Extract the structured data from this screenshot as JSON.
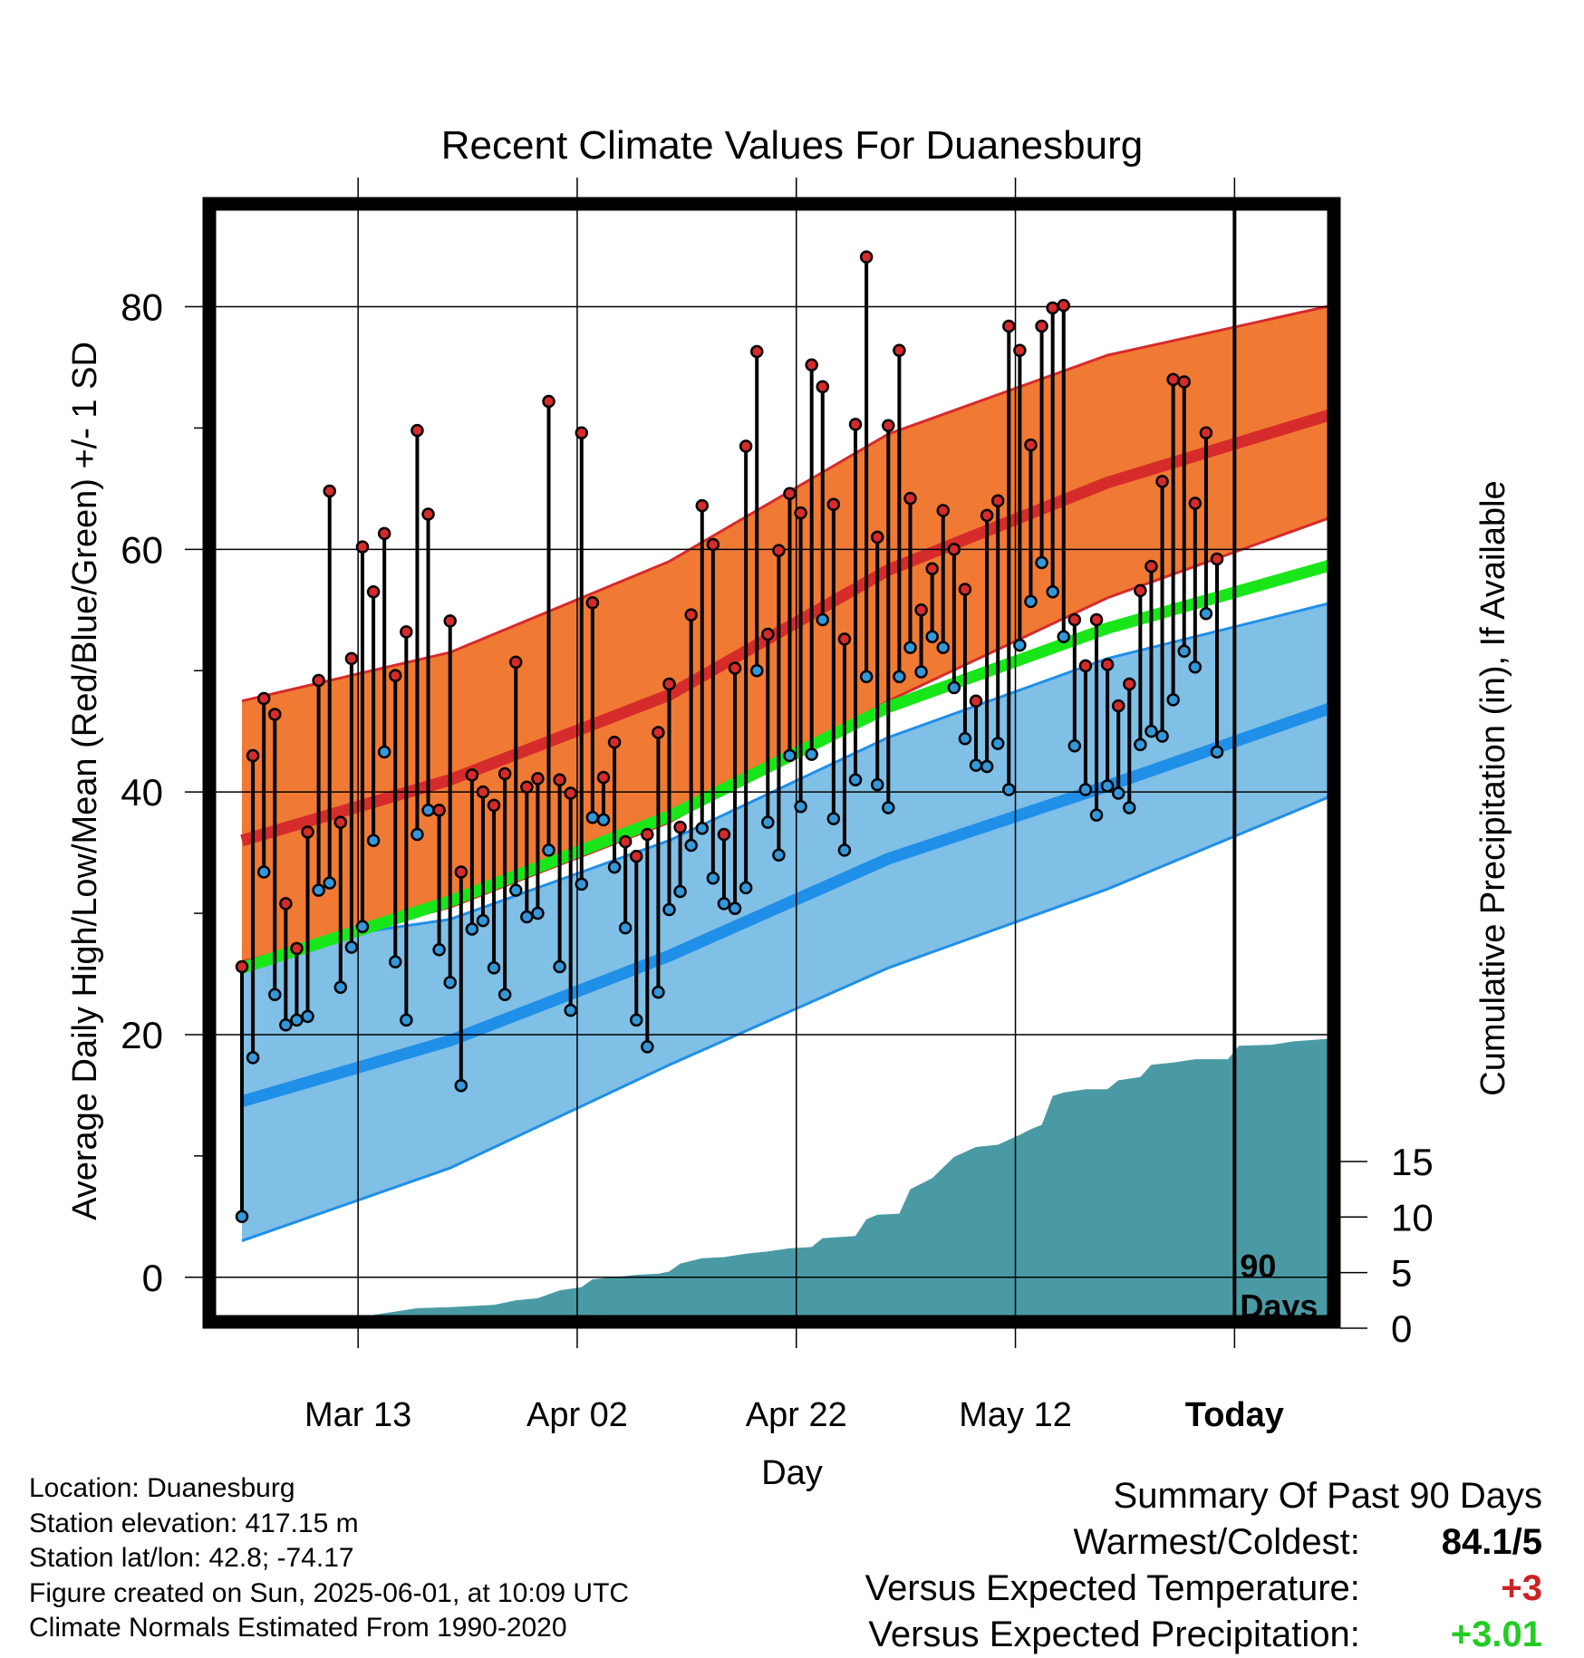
{
  "chart_data": {
    "type": "line",
    "title": "Recent Climate Values For Duanesburg",
    "xlabel": "Day",
    "ylabel": "Average Daily High/Low/Mean (Red/Blue/Green) +/- 1 SD",
    "y2label": "Cumulative Precipitation (in), If Available",
    "x_tick_labels": [
      "Mar 13",
      "Apr 02",
      "Apr 22",
      "May 12",
      "Today"
    ],
    "y_ticks": [
      "0",
      "20",
      "40",
      "60",
      "80"
    ],
    "y2_ticks": [
      "0",
      "5",
      "10",
      "15"
    ],
    "ylim": [
      -4.2,
      89
    ],
    "y2lim": [
      0,
      30
    ],
    "days_shown": 90,
    "today_marker_label": [
      "90",
      "Days"
    ],
    "colors": {
      "high_band": "#f07a33",
      "high_mean": "#d62b2b",
      "low_band": "#80bfe6",
      "low_mean": "#1f8fe8",
      "mean": "#19e619",
      "precip": "#4a9aa5",
      "high_dot": "#d62b2b",
      "low_dot": "#3398d9"
    },
    "daily_high": [
      25.6,
      43,
      47.7,
      46.4,
      30.8,
      27.1,
      36.7,
      49.2,
      64.8,
      37.5,
      51,
      60.2,
      56.5,
      61.3,
      49.6,
      53.2,
      69.8,
      62.9,
      38.5,
      54.1,
      33.4,
      41.4,
      40,
      38.9,
      41.5,
      50.7,
      40.4,
      41.1,
      72.2,
      41,
      39.9,
      69.6,
      55.6,
      41.2,
      44.1,
      35.9,
      34.7,
      36.5,
      44.9,
      48.9,
      37.1,
      54.6,
      63.6,
      60.4,
      36.5,
      50.2,
      68.5,
      76.3,
      53,
      59.9,
      64.6,
      63,
      75.2,
      73.4,
      63.7,
      52.6,
      70.3,
      84.1,
      61,
      70.2,
      76.4,
      64.2,
      55,
      58.4,
      63.2,
      60,
      56.7,
      47.5,
      62.8,
      64,
      78.4,
      76.4,
      68.6,
      78.4,
      79.9,
      80.1,
      54.2,
      50.4,
      54.2,
      50.5,
      47.1,
      48.9,
      56.6,
      58.6,
      65.6,
      74,
      73.8,
      63.8,
      69.6,
      59.2
    ],
    "daily_low": [
      5,
      18.1,
      33.4,
      23.3,
      20.8,
      21.2,
      21.5,
      31.9,
      32.5,
      23.9,
      27.2,
      28.9,
      36,
      43.3,
      26,
      21.2,
      36.5,
      38.5,
      27,
      24.3,
      15.8,
      28.7,
      29.4,
      25.5,
      23.3,
      31.9,
      29.7,
      30,
      35.2,
      25.6,
      22,
      32.4,
      37.9,
      37.7,
      33.8,
      28.8,
      21.2,
      19,
      23.5,
      30.3,
      31.8,
      35.6,
      37,
      32.9,
      30.8,
      30.4,
      32.1,
      50,
      37.5,
      34.8,
      43,
      38.8,
      43.1,
      54.2,
      37.8,
      35.2,
      41,
      49.5,
      40.6,
      38.7,
      49.5,
      51.9,
      49.9,
      52.8,
      51.9,
      48.6,
      44.4,
      42.2,
      42.1,
      44,
      40.2,
      52.1,
      55.7,
      58.9,
      56.5,
      52.8,
      43.8,
      40.2,
      38.1,
      40.5,
      39.9,
      38.7,
      43.9,
      45,
      44.6,
      47.6,
      51.6,
      50.3,
      54.7,
      43.3
    ],
    "normal_high_mean": [
      [
        1,
        36
      ],
      [
        20,
        41
      ],
      [
        40,
        48
      ],
      [
        60,
        58.3
      ],
      [
        80,
        65.5
      ],
      [
        100,
        71
      ],
      [
        111,
        73.5
      ]
    ],
    "normal_high_upper": [
      [
        1,
        47.5
      ],
      [
        20,
        51.5
      ],
      [
        40,
        59
      ],
      [
        60,
        69.5
      ],
      [
        80,
        76
      ],
      [
        100,
        80
      ],
      [
        111,
        81.7
      ]
    ],
    "normal_high_lower": [
      [
        1,
        26
      ],
      [
        20,
        30.5
      ],
      [
        40,
        37.5
      ],
      [
        60,
        47.5
      ],
      [
        80,
        56
      ],
      [
        100,
        62.5
      ],
      [
        111,
        66
      ]
    ],
    "normal_low_mean": [
      [
        1,
        14.5
      ],
      [
        20,
        19.5
      ],
      [
        40,
        26.5
      ],
      [
        60,
        34.5
      ],
      [
        80,
        40.5
      ],
      [
        100,
        46.8
      ],
      [
        111,
        50.5
      ]
    ],
    "normal_low_upper": [
      [
        1,
        27
      ],
      [
        20,
        29.5
      ],
      [
        40,
        36
      ],
      [
        60,
        44.5
      ],
      [
        80,
        51
      ],
      [
        100,
        55.5
      ],
      [
        111,
        57.5
      ]
    ],
    "normal_low_lower": [
      [
        1,
        3
      ],
      [
        20,
        9
      ],
      [
        40,
        17.5
      ],
      [
        60,
        25.5
      ],
      [
        80,
        32
      ],
      [
        100,
        39.5
      ],
      [
        111,
        44.3
      ]
    ],
    "normal_mean": [
      [
        1,
        25.5
      ],
      [
        20,
        31
      ],
      [
        40,
        38
      ],
      [
        60,
        47
      ],
      [
        80,
        53.5
      ],
      [
        100,
        58.6
      ],
      [
        111,
        62.3
      ]
    ],
    "cumulative_precip": [
      [
        12,
        0
      ],
      [
        13,
        1.2
      ],
      [
        15,
        1.5
      ],
      [
        17,
        1.8
      ],
      [
        20,
        1.9
      ],
      [
        24,
        2.1
      ],
      [
        26,
        2.5
      ],
      [
        28,
        2.7
      ],
      [
        30,
        3.4
      ],
      [
        32,
        3.7
      ],
      [
        33,
        4.4
      ],
      [
        35,
        4.6
      ],
      [
        37,
        4.8
      ],
      [
        39,
        4.9
      ],
      [
        40,
        5.1
      ],
      [
        41,
        5.8
      ],
      [
        43,
        6.3
      ],
      [
        45,
        6.4
      ],
      [
        47,
        6.7
      ],
      [
        49,
        6.9
      ],
      [
        51,
        7.2
      ],
      [
        53,
        7.3
      ],
      [
        54,
        8.1
      ],
      [
        57,
        8.3
      ],
      [
        58,
        9.8
      ],
      [
        59,
        10.2
      ],
      [
        61,
        10.3
      ],
      [
        62,
        12.5
      ],
      [
        63,
        13
      ],
      [
        64,
        13.5
      ],
      [
        66,
        15.4
      ],
      [
        68,
        16.3
      ],
      [
        70,
        16.5
      ],
      [
        72,
        17.4
      ],
      [
        73,
        17.9
      ],
      [
        74,
        18.3
      ],
      [
        75,
        20.9
      ],
      [
        76,
        21.2
      ],
      [
        78,
        21.5
      ],
      [
        80,
        21.5
      ],
      [
        81,
        22.3
      ],
      [
        83,
        22.6
      ],
      [
        84,
        23.7
      ],
      [
        86,
        23.9
      ],
      [
        88,
        24.2
      ],
      [
        91,
        24.2
      ],
      [
        92,
        25.4
      ],
      [
        95,
        25.5
      ],
      [
        97,
        25.8
      ],
      [
        101,
        26.1
      ],
      [
        103,
        26.4
      ],
      [
        106,
        26.4
      ],
      [
        107,
        30
      ],
      [
        111,
        30
      ]
    ],
    "tick_positions_days": [
      11.6,
      31.6,
      51.6,
      71.6,
      91.6
    ]
  },
  "footer": {
    "location": "Location: Duanesburg",
    "elevation": "Station elevation: 417.15 m",
    "latlon": "Station lat/lon: 42.8; -74.17",
    "created": "Figure created on Sun, 2025-06-01, at 10:09 UTC",
    "normals": "Climate Normals Estimated From 1990-2020"
  },
  "summary": {
    "title": "Summary Of Past 90 Days",
    "warmest_coldest_label": "Warmest/Coldest:",
    "warmest_coldest_value": "84.1/5",
    "vs_temp_label": "Versus Expected Temperature:",
    "vs_temp_value": "+3",
    "vs_precip_label": "Versus Expected Precipitation:",
    "vs_precip_value": "+3.01",
    "temp_color": "#cc2222",
    "precip_color": "#22cc22"
  }
}
